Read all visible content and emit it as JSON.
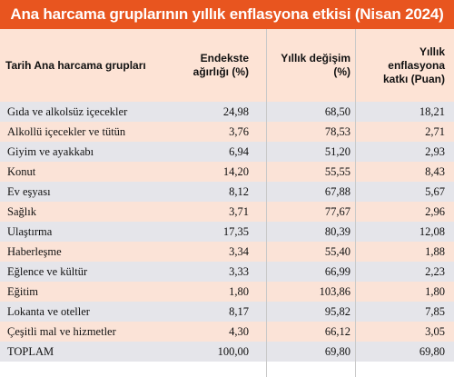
{
  "title": "Ana harcama gruplarının yıllık enflasyona etkisi (Nisan 2024)",
  "columns": [
    "Tarih Ana harcama grupları",
    "Endekste ağırlığı (%)",
    "Yıllık değişim (%)",
    "Yıllık enflasyona katkı (Puan)"
  ],
  "rows": [
    {
      "name": "Gıda ve alkolsüz içecekler",
      "weight": "24,98",
      "change": "68,50",
      "contribution": "18,21"
    },
    {
      "name": "Alkollü içecekler ve tütün",
      "weight": "3,76",
      "change": "78,53",
      "contribution": "2,71"
    },
    {
      "name": "Giyim ve ayakkabı",
      "weight": "6,94",
      "change": "51,20",
      "contribution": "2,93"
    },
    {
      "name": "Konut",
      "weight": "14,20",
      "change": "55,55",
      "contribution": "8,43"
    },
    {
      "name": "Ev eşyası",
      "weight": "8,12",
      "change": "67,88",
      "contribution": "5,67"
    },
    {
      "name": "Sağlık",
      "weight": "3,71",
      "change": "77,67",
      "contribution": "2,96"
    },
    {
      "name": "Ulaştırma",
      "weight": "17,35",
      "change": "80,39",
      "contribution": "12,08"
    },
    {
      "name": "Haberleşme",
      "weight": "3,34",
      "change": "55,40",
      "contribution": "1,88"
    },
    {
      "name": "Eğlence ve kültür",
      "weight": "3,33",
      "change": "66,99",
      "contribution": "2,23"
    },
    {
      "name": "Eğitim",
      "weight": "1,80",
      "change": "103,86",
      "contribution": "1,80"
    },
    {
      "name": "Lokanta ve oteller",
      "weight": "8,17",
      "change": "95,82",
      "contribution": "7,85"
    },
    {
      "name": "Çeşitli mal ve hizmetler",
      "weight": "4,30",
      "change": "66,12",
      "contribution": "3,05"
    },
    {
      "name": "TOPLAM",
      "weight": "100,00",
      "change": "69,80",
      "contribution": "69,80"
    }
  ],
  "colors": {
    "title_bg": "#e8551f",
    "header_bg": "#fde3d5",
    "row_gray": "#e5e5ea",
    "row_peach": "#fbe3d7"
  }
}
